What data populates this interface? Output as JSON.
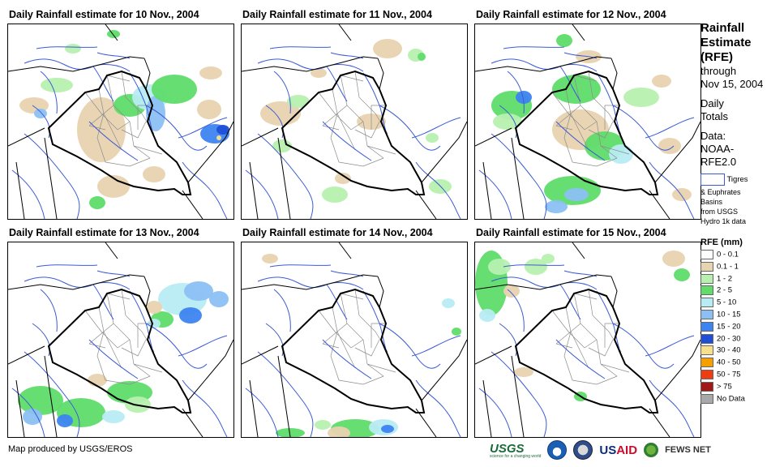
{
  "panels": [
    {
      "title": "Daily Rainfall estimate for 10 Nov., 2004"
    },
    {
      "title": "Daily Rainfall estimate for 11 Nov., 2004"
    },
    {
      "title": "Daily Rainfall estimate for 12 Nov., 2004"
    },
    {
      "title": "Daily Rainfall estimate for 13 Nov., 2004"
    },
    {
      "title": "Daily Rainfall estimate for 14 Nov., 2004"
    },
    {
      "title": "Daily Rainfall estimate for 15 Nov., 2004"
    }
  ],
  "sidebar": {
    "title_lines": [
      "Rainfall",
      "Estimate",
      "(RFE)"
    ],
    "through_lines": [
      "through",
      "Nov 15, 2004"
    ],
    "daily_lines": [
      "Daily",
      "Totals"
    ],
    "data_lines": [
      "Data:",
      "NOAA-",
      "RFE2.0"
    ],
    "basin_label": "Tigres",
    "basin_note_lines": [
      "& Euphrates",
      "Basins",
      "from USGS",
      "Hydro 1k data"
    ]
  },
  "legend": {
    "title": "RFE (mm)",
    "items": [
      {
        "label": "0 - 0.1",
        "color": "#ffffff"
      },
      {
        "label": "0.1 - 1",
        "color": "#e8d3b0"
      },
      {
        "label": "1 - 2",
        "color": "#b8f0b0"
      },
      {
        "label": "2 - 5",
        "color": "#5fdc6a"
      },
      {
        "label": "5 - 10",
        "color": "#b8ecf4"
      },
      {
        "label": "10 - 15",
        "color": "#8cc0f4"
      },
      {
        "label": "15 - 20",
        "color": "#3d84f0"
      },
      {
        "label": "20 - 30",
        "color": "#1f4fd8"
      },
      {
        "label": "30 - 40",
        "color": "#f8e08a"
      },
      {
        "label": "40 - 50",
        "color": "#f5a000"
      },
      {
        "label": "50 - 75",
        "color": "#f03c10"
      },
      {
        "label": "> 75",
        "color": "#a01818"
      },
      {
        "label": "No Data",
        "color": "#a8a8a8"
      }
    ]
  },
  "colors": {
    "river": "#3b5bd6",
    "border": "#000000",
    "district": "#8c8c8c"
  },
  "footer": {
    "credit": "Map produced by USGS/EROS",
    "logos": [
      "USGS",
      "NOAA",
      "DOI",
      "USAID",
      "FEWS NET"
    ],
    "usgs_tagline": "science for a changing world",
    "usaid_part1": "US",
    "usaid_part2": "AID",
    "fews": "FEWS NET"
  }
}
